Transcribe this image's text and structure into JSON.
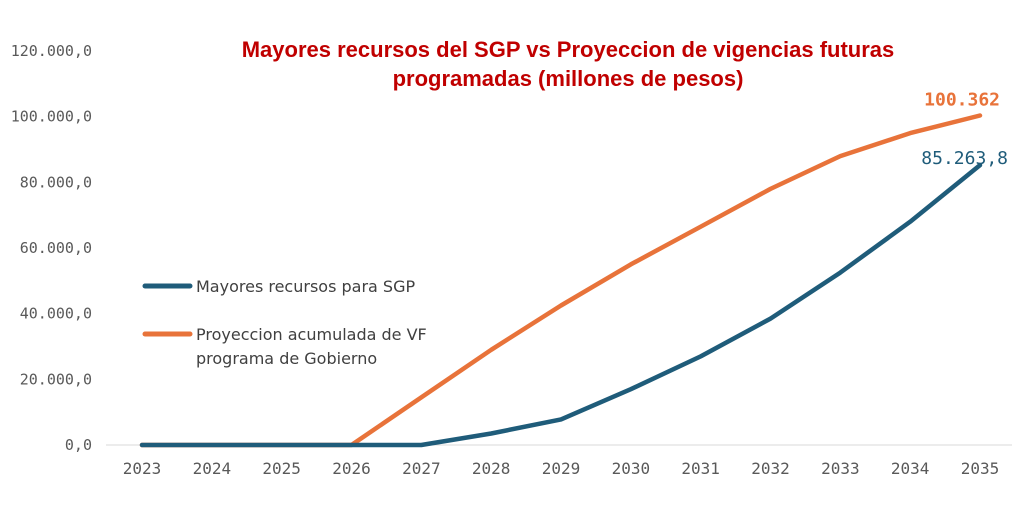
{
  "chart_data": {
    "type": "line",
    "title_lines": [
      "Mayores recursos del SGP vs Proyeccion de vigencias futuras",
      "programadas (millones de pesos)"
    ],
    "title_color": "#c00000",
    "categories": [
      "2023",
      "2024",
      "2025",
      "2026",
      "2027",
      "2028",
      "2029",
      "2030",
      "2031",
      "2032",
      "2033",
      "2034",
      "2035"
    ],
    "ylim": [
      0,
      120000
    ],
    "yticks": [
      0,
      20000,
      40000,
      60000,
      80000,
      100000,
      120000
    ],
    "ytick_labels": [
      "0,0",
      "20.000,0",
      "40.000,0",
      "60.000,0",
      "80.000,0",
      "100.000,0",
      "120.000,0"
    ],
    "grid": false,
    "legend_position": "left-middle",
    "series": [
      {
        "name": "Mayores recursos para SGP",
        "color": "#1f5c7a",
        "values": [
          0,
          0,
          0,
          0,
          0,
          3500,
          7800,
          17000,
          27000,
          38500,
          52500,
          68000,
          85263.8
        ],
        "end_label": "85.263,8"
      },
      {
        "name": "Proyeccion acumulada de VF programa de Gobierno",
        "name_lines": [
          "Proyeccion acumulada de VF",
          "programa de Gobierno"
        ],
        "color": "#e8733a",
        "values": [
          0,
          0,
          0,
          0,
          14500,
          29000,
          42500,
          55000,
          66500,
          78000,
          88000,
          95000,
          100362
        ],
        "end_label": "100.362"
      }
    ]
  }
}
